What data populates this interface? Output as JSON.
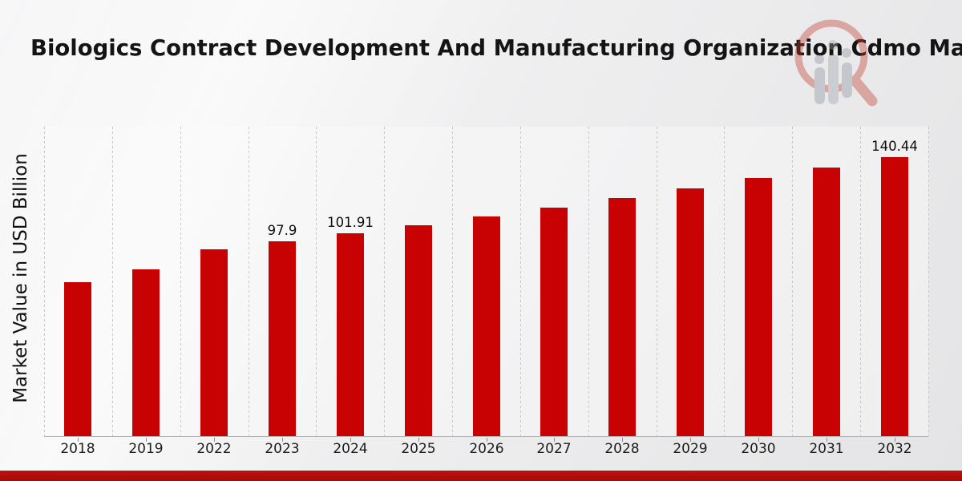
{
  "title": "Biologics Contract Development And Manufacturing Organization Cdmo Market",
  "y_axis_label": "Market Value in USD Billion",
  "logo": {
    "name": "magnifier-bar-chart-watermark"
  },
  "colors": {
    "bar": "#c80202",
    "footer_strip": "#b20d0d",
    "grid": "#c7c7c8",
    "axis": "#b3b3b3",
    "text": "#141414",
    "logo_ring": "#c0392b",
    "logo_bars": "#8a919b"
  },
  "chart_data": {
    "type": "bar",
    "title": "Biologics Contract Development And Manufacturing Organization Cdmo Market",
    "xlabel": "",
    "ylabel": "Market Value in USD Billion",
    "categories": [
      "2018",
      "2019",
      "2022",
      "2023",
      "2024",
      "2025",
      "2026",
      "2027",
      "2028",
      "2029",
      "2030",
      "2031",
      "2032"
    ],
    "values": [
      77.3,
      83.7,
      94.1,
      97.9,
      101.91,
      106.1,
      110.4,
      114.9,
      119.6,
      124.5,
      129.6,
      134.9,
      140.44
    ],
    "data_labels": {
      "2023": "97.9",
      "2024": "101.91",
      "2032": "140.44"
    },
    "ylim": [
      0,
      156
    ],
    "grid": "vertical-dashed",
    "legend": "none"
  }
}
